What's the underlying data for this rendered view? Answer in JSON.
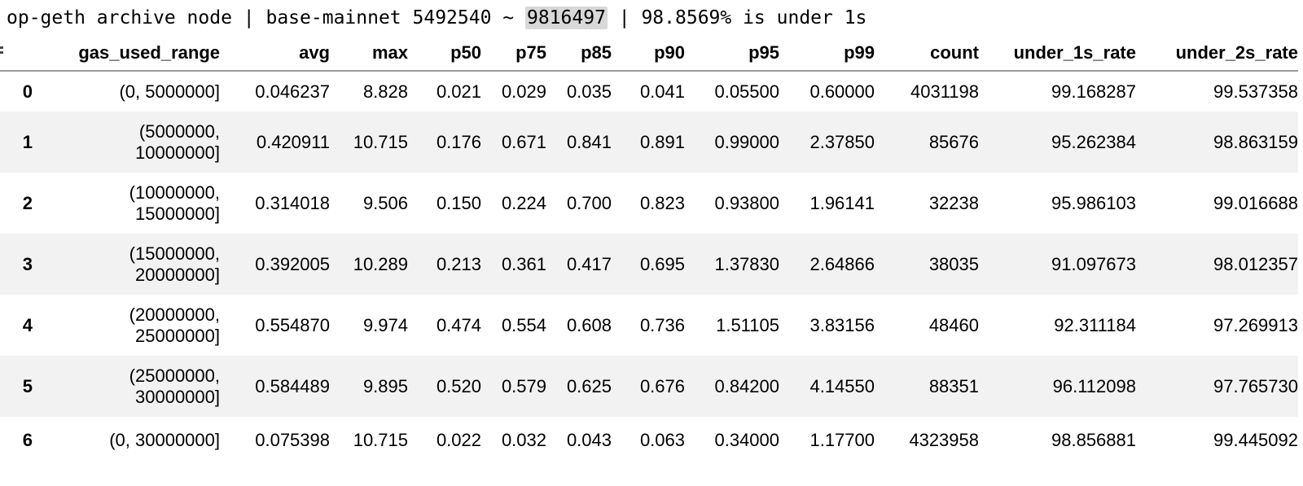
{
  "title": {
    "prefix": "op-geth archive node | base-mainnet 5492540 ~ ",
    "highlight": "9816497",
    "suffix": " | 98.8569% is under 1s"
  },
  "colors": {
    "row_stripe": "#f2f2f2",
    "header_border": "#9b9b9b",
    "highlight_bg": "#d8d8d8",
    "text": "#000000"
  },
  "table": {
    "columns": [
      "",
      "gas_used_range",
      "avg",
      "max",
      "p50",
      "p75",
      "p85",
      "p90",
      "p95",
      "p99",
      "count",
      "under_1s_rate",
      "under_2s_rate"
    ],
    "rows": [
      [
        "0",
        "(0, 5000000]",
        "0.046237",
        "8.828",
        "0.021",
        "0.029",
        "0.035",
        "0.041",
        "0.05500",
        "0.60000",
        "4031198",
        "99.168287",
        "99.537358"
      ],
      [
        "1",
        "(5000000, 10000000]",
        "0.420911",
        "10.715",
        "0.176",
        "0.671",
        "0.841",
        "0.891",
        "0.99000",
        "2.37850",
        "85676",
        "95.262384",
        "98.863159"
      ],
      [
        "2",
        "(10000000, 15000000]",
        "0.314018",
        "9.506",
        "0.150",
        "0.224",
        "0.700",
        "0.823",
        "0.93800",
        "1.96141",
        "32238",
        "95.986103",
        "99.016688"
      ],
      [
        "3",
        "(15000000, 20000000]",
        "0.392005",
        "10.289",
        "0.213",
        "0.361",
        "0.417",
        "0.695",
        "1.37830",
        "2.64866",
        "38035",
        "91.097673",
        "98.012357"
      ],
      [
        "4",
        "(20000000, 25000000]",
        "0.554870",
        "9.974",
        "0.474",
        "0.554",
        "0.608",
        "0.736",
        "1.51105",
        "3.83156",
        "48460",
        "92.311184",
        "97.269913"
      ],
      [
        "5",
        "(25000000, 30000000]",
        "0.584489",
        "9.895",
        "0.520",
        "0.579",
        "0.625",
        "0.676",
        "0.84200",
        "4.14550",
        "88351",
        "96.112098",
        "97.765730"
      ],
      [
        "6",
        "(0, 30000000]",
        "0.075398",
        "10.715",
        "0.022",
        "0.032",
        "0.043",
        "0.063",
        "0.34000",
        "1.17700",
        "4323958",
        "98.856881",
        "99.445092"
      ]
    ]
  }
}
